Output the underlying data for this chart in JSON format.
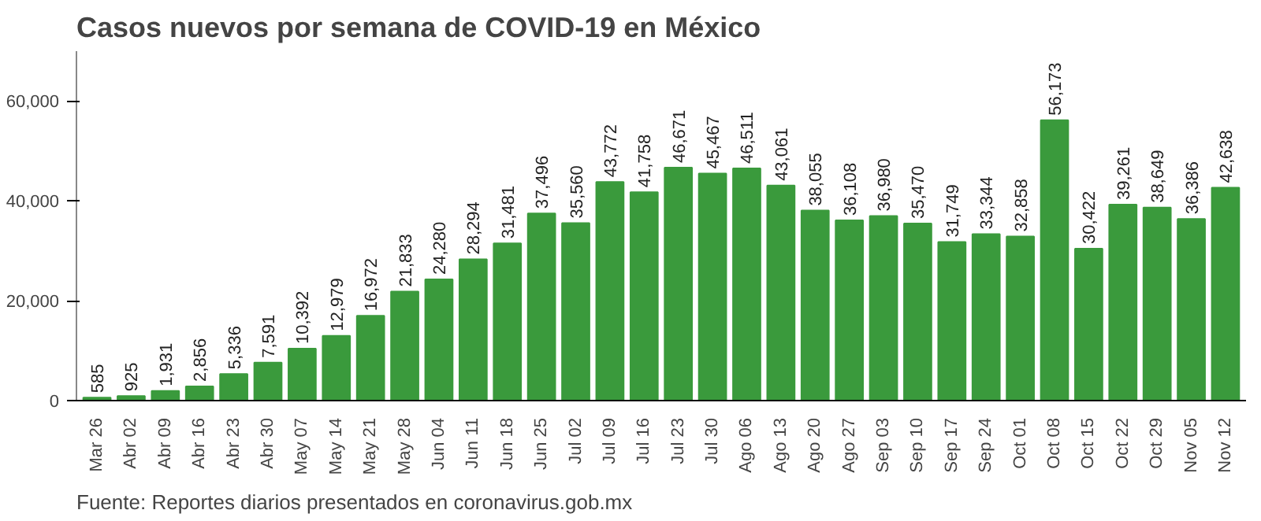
{
  "chart_data": {
    "type": "bar",
    "title": "Casos nuevos por semana de COVID-19 en México",
    "annotations": [
      "Fuente: Reportes diarios presentados en coronavirus.gob.mx"
    ],
    "categories": [
      "Mar 26",
      "Abr 02",
      "Abr 09",
      "Abr 16",
      "Abr 23",
      "Abr 30",
      "May 07",
      "May 14",
      "May 21",
      "May 28",
      "Jun 04",
      "Jun 11",
      "Jun 18",
      "Jun 25",
      "Jul 02",
      "Jul 09",
      "Jul 16",
      "Jul 23",
      "Jul 30",
      "Ago 06",
      "Ago 13",
      "Ago 20",
      "Ago 27",
      "Sep 03",
      "Sep 10",
      "Sep 17",
      "Sep 24",
      "Oct 01",
      "Oct 08",
      "Oct 15",
      "Oct 22",
      "Oct 29",
      "Nov 05",
      "Nov 12"
    ],
    "values": [
      585,
      925,
      1931,
      2856,
      5336,
      7591,
      10392,
      12979,
      16972,
      21833,
      24280,
      28294,
      31481,
      37496,
      35560,
      43772,
      41758,
      46671,
      45467,
      46511,
      43061,
      38055,
      36108,
      36980,
      35470,
      31749,
      33344,
      32858,
      56173,
      30422,
      39261,
      38649,
      36386,
      42638
    ],
    "value_labels": [
      "585",
      "925",
      "1,931",
      "2,856",
      "5,336",
      "7,591",
      "10,392",
      "12,979",
      "16,972",
      "21,833",
      "24,280",
      "28,294",
      "31,481",
      "37,496",
      "35,560",
      "43,772",
      "41,758",
      "46,671",
      "45,467",
      "46,511",
      "43,061",
      "38,055",
      "36,108",
      "36,980",
      "35,470",
      "31,749",
      "33,344",
      "32,858",
      "56,173",
      "30,422",
      "39,261",
      "38,649",
      "36,386",
      "42,638"
    ],
    "color": "#3a9a3c",
    "ylim": [
      0,
      70000
    ],
    "yticks": [
      {
        "value": 0,
        "label": "0"
      },
      {
        "value": 20000,
        "label": "20,000"
      },
      {
        "value": 40000,
        "label": "40,000"
      },
      {
        "value": 60000,
        "label": "60,000"
      }
    ],
    "grid": false
  }
}
